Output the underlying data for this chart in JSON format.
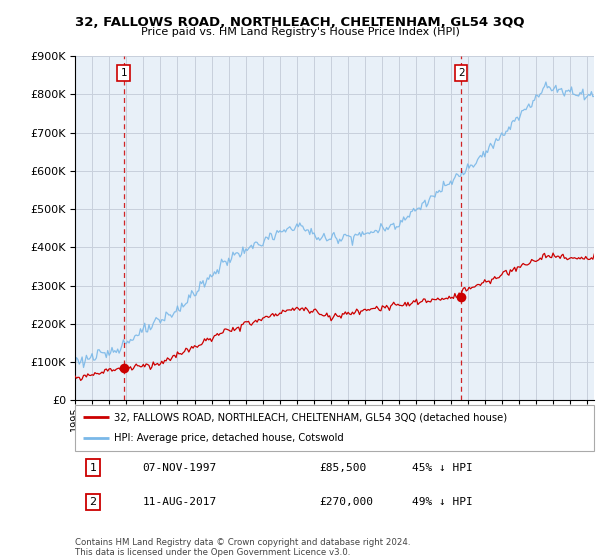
{
  "title": "32, FALLOWS ROAD, NORTHLEACH, CHELTENHAM, GL54 3QQ",
  "subtitle": "Price paid vs. HM Land Registry's House Price Index (HPI)",
  "sale1_date": 1997.854,
  "sale1_price": 85500,
  "sale1_label": "1",
  "sale2_date": 2017.622,
  "sale2_price": 270000,
  "sale2_label": "2",
  "hpi_color": "#7ab8e8",
  "price_color": "#cc0000",
  "dashed_color": "#cc0000",
  "ylim": [
    0,
    900000
  ],
  "xlim_start": 1995.0,
  "xlim_end": 2025.4,
  "legend1_label": "32, FALLOWS ROAD, NORTHLEACH, CHELTENHAM, GL54 3QQ (detached house)",
  "legend2_label": "HPI: Average price, detached house, Cotswold",
  "table_row1": [
    "1",
    "07-NOV-1997",
    "£85,500",
    "45% ↓ HPI"
  ],
  "table_row2": [
    "2",
    "11-AUG-2017",
    "£270,000",
    "49% ↓ HPI"
  ],
  "footer": "Contains HM Land Registry data © Crown copyright and database right 2024.\nThis data is licensed under the Open Government Licence v3.0.",
  "background_color": "#ffffff",
  "chart_bg": "#e8f0f8",
  "grid_color": "#c8d0dc"
}
